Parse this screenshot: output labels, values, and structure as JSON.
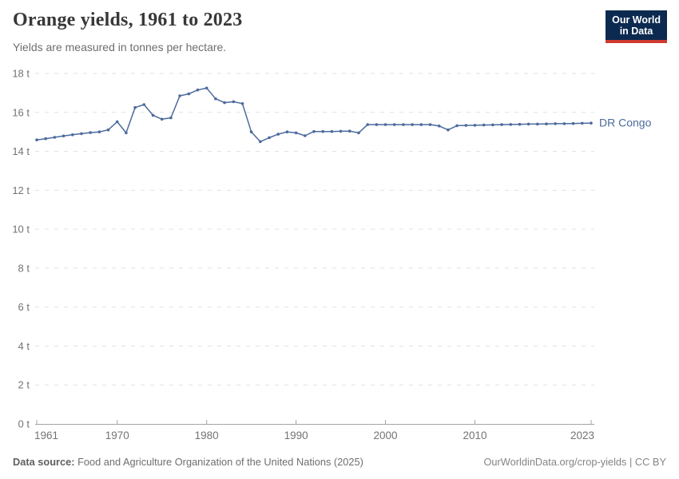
{
  "header": {
    "title": "Orange yields, 1961 to 2023",
    "subtitle": "Yields are measured in tonnes per hectare."
  },
  "logo": {
    "line1": "Our World",
    "line2": "in Data"
  },
  "footer": {
    "source_label": "Data source:",
    "source_text": " Food and Agriculture Organization of the United Nations (2025)",
    "credit": "OurWorldinData.org/crop-yields | CC BY"
  },
  "colors": {
    "line": "#4C6A9C",
    "series_label": "#4C6A9C",
    "grid": "#e2e2e2",
    "axis": "#a3a3a3",
    "tick_text": "#737373",
    "title_text": "#383838",
    "logo_bg": "#0c2a50",
    "logo_stripe": "#cf3a31"
  },
  "chart_data": {
    "type": "line",
    "title": "Orange yields, 1961 to 2023",
    "subtitle": "Yields are measured in tonnes per hectare.",
    "unit": "t",
    "xlabel": "",
    "ylabel": "tonnes per hectare",
    "xlim": [
      1961,
      2023
    ],
    "ylim": [
      0,
      18
    ],
    "xticks": [
      1961,
      1970,
      1980,
      1990,
      2000,
      2010,
      2023
    ],
    "yticks": [
      0,
      2,
      4,
      6,
      8,
      10,
      12,
      14,
      16,
      18
    ],
    "grid": "horizontal-dashed",
    "legend": "end-of-line-label",
    "x": [
      1961,
      1962,
      1963,
      1964,
      1965,
      1966,
      1967,
      1968,
      1969,
      1970,
      1971,
      1972,
      1973,
      1974,
      1975,
      1976,
      1977,
      1978,
      1979,
      1980,
      1981,
      1982,
      1983,
      1984,
      1985,
      1986,
      1987,
      1988,
      1989,
      1990,
      1991,
      1992,
      1993,
      1994,
      1995,
      1996,
      1997,
      1998,
      1999,
      2000,
      2001,
      2002,
      2003,
      2004,
      2005,
      2006,
      2007,
      2008,
      2009,
      2010,
      2011,
      2012,
      2013,
      2014,
      2015,
      2016,
      2017,
      2018,
      2019,
      2020,
      2021,
      2022,
      2023
    ],
    "series": [
      {
        "name": "DR Congo",
        "color": "#4C6A9C",
        "values": [
          14.59,
          14.65,
          14.72,
          14.79,
          14.85,
          14.91,
          14.96,
          15.0,
          15.1,
          15.52,
          14.95,
          16.25,
          16.4,
          15.85,
          15.65,
          15.72,
          16.85,
          16.95,
          17.15,
          17.25,
          16.7,
          16.5,
          16.55,
          16.45,
          15.0,
          14.5,
          14.7,
          14.88,
          15.0,
          14.95,
          14.8,
          15.02,
          15.02,
          15.02,
          15.03,
          15.04,
          14.95,
          15.37,
          15.37,
          15.37,
          15.37,
          15.37,
          15.37,
          15.37,
          15.37,
          15.3,
          15.1,
          15.32,
          15.33,
          15.34,
          15.35,
          15.36,
          15.37,
          15.38,
          15.39,
          15.4,
          15.4,
          15.41,
          15.42,
          15.42,
          15.43,
          15.44,
          15.45
        ]
      }
    ]
  }
}
